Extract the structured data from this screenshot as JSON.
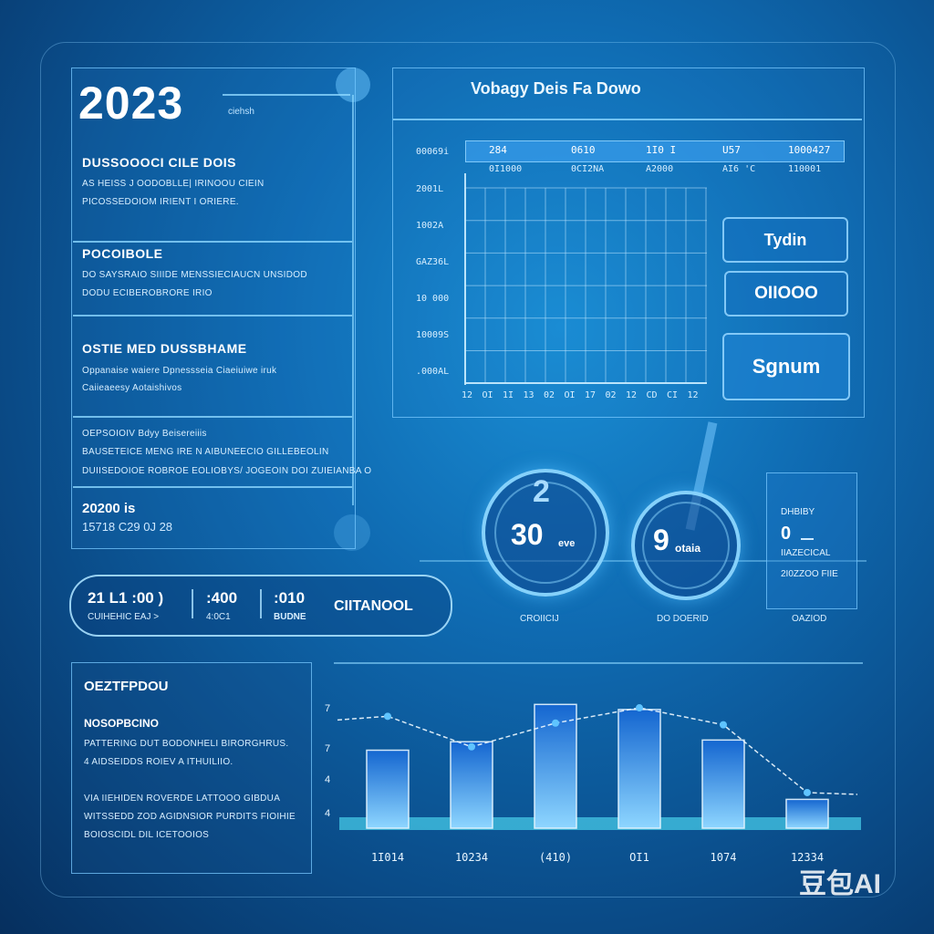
{
  "left_panel": {
    "year": "2023",
    "year_sub": "ciehsh",
    "sections": [
      {
        "heading": "DUSSOOOCI CILE DOIS",
        "lines": [
          "AS HEISS J OODOBLLE| IRINOOU CIEIN",
          "PICOSSEDOIOM IRIENT I ORIERE."
        ]
      },
      {
        "heading": "POCOIBOLE",
        "lines": [
          "DO SAYSRAIO SIIIDE MENSSIECIAUCN UNSIDOD",
          "DODU ECIBEROBRORE IRIO"
        ]
      },
      {
        "heading": "OSTIE MED DUSSBHAME",
        "lines": [
          "Oppanaise waiere Dpnessseia Ciaeiuiwe iruk",
          "Caiieaeesy Aotaishivos"
        ]
      },
      {
        "heading": "",
        "lines": [
          "OEPSOIOIV Bdyy Beisereiiis",
          "BAUSETEICE MENG IRE N AIBUNEECIO GILLEBEOLIN",
          "DUIISEDOIOE ROBROE EOLIOBYS/ JOGEOIN DOI ZUIEIANBA O"
        ]
      }
    ],
    "footer_value": "20200 is",
    "footer_sub": "15718 C29 0J 28"
  },
  "pill_bar": {
    "items": [
      {
        "value": "21 L1 :00 )",
        "sub": "CUIHEHIC EAJ >"
      },
      {
        "value": ":400",
        "sub": "4:0C1"
      },
      {
        "value": ":010",
        "sub": "BUDNE"
      }
    ],
    "label": "CIITANOOL"
  },
  "grid_chart": {
    "title": "Vobagy Deis Fa Dowo",
    "y_labels": [
      "00069i",
      "2001L",
      "1002A",
      "GAZ36L",
      "10 000",
      "10009S",
      ".000AL"
    ],
    "columns": [
      {
        "head": "284",
        "sub": "0I1000"
      },
      {
        "head": "0610",
        "sub": "0CI2NA"
      },
      {
        "head": "1I0 I",
        "sub": "A2000"
      },
      {
        "head": "U57",
        "sub": "AI6 'C"
      },
      {
        "head": "1000427",
        "sub": "110001"
      }
    ],
    "x_ticks": [
      "12",
      "OI",
      "1I",
      "13",
      "02",
      "OI",
      "17",
      "02",
      "12",
      "CD",
      "CI",
      "12"
    ]
  },
  "buttons": {
    "b1": "Tydin",
    "b2": "OIIOOO",
    "b3": "Sgnum"
  },
  "gauges": [
    {
      "value": "30",
      "unit": "eve",
      "caption": "CROIICIJ"
    },
    {
      "value": "9",
      "unit": "otaia",
      "caption": "DO DOERID"
    }
  ],
  "status_card": {
    "line1": "DHBIBY",
    "value": "0",
    "line2": "IIAZECICAL",
    "line3": "2I0ZZOO FIIE",
    "caption": "OAZIOD"
  },
  "bottom_left": {
    "title": "OEZTFPDOU",
    "subtitle": "NOSOPBCINO",
    "lines1": [
      "PATTERING DUT BODONHELI BIRORGHRUS.",
      "4 AIDSEIDDS ROIEV A ITHUILIIO."
    ],
    "lines2": [
      "VIA IIEHIDEN ROVERDE LATTOOO GIBDUA",
      "WITSSEDD ZOD AGIDNSIOR PURDITS FIOIHIE",
      "BOIOSCIDL DIL ICETOOIOS"
    ]
  },
  "chart_data": {
    "type": "bar",
    "categories": [
      "1I014",
      "10234",
      "(410)",
      "OI1",
      "1074",
      "12334"
    ],
    "values": [
      4.6,
      5.1,
      7.3,
      7.0,
      5.2,
      1.7
    ],
    "line_series": [
      6.6,
      4.8,
      6.2,
      7.1,
      6.1,
      2.1
    ],
    "y_tick_labels": [
      "4",
      "4",
      "7",
      "7"
    ],
    "ylim": [
      0,
      8.5
    ]
  },
  "watermark": "豆包AI"
}
